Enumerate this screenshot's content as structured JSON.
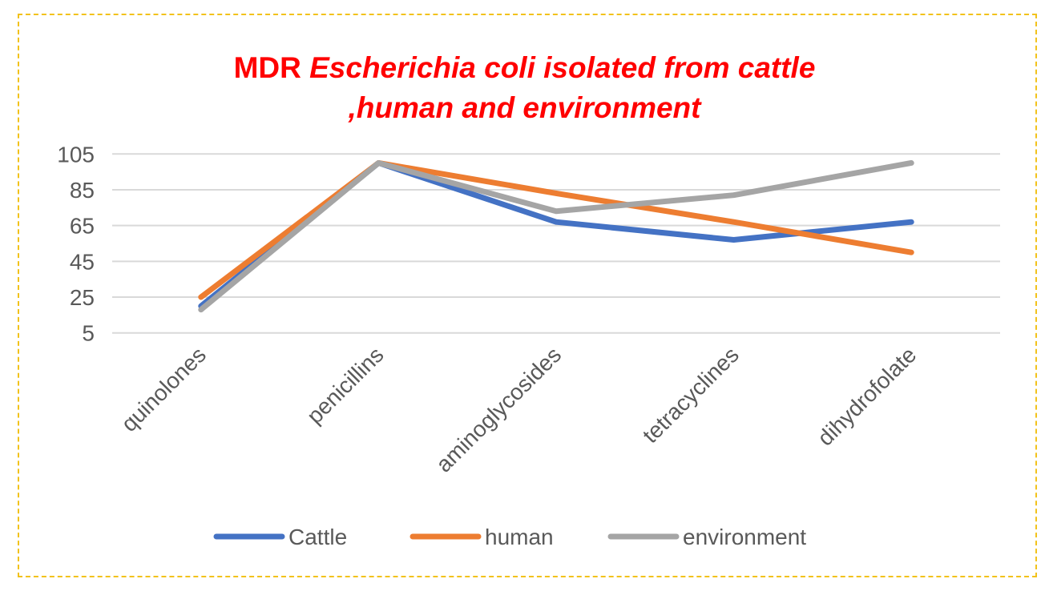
{
  "chart_data": {
    "type": "line",
    "title": {
      "line1_plain": "MDR ",
      "line1_italic": "Escherichia coli isolated from cattle",
      "line2_italic": ",human and  environment"
    },
    "xlabel": "",
    "ylabel": "",
    "categories": [
      "quinolones",
      "penicillins",
      "aminoglycosides",
      "tetracyclines",
      "dihydrofolate"
    ],
    "yticks": [
      5,
      25,
      45,
      65,
      85,
      105
    ],
    "ylim": [
      5,
      105
    ],
    "grid": true,
    "legend_position": "bottom",
    "series": [
      {
        "name": "Cattle",
        "color": "#4472c4",
        "values": [
          20,
          100,
          67,
          57,
          67
        ]
      },
      {
        "name": "human",
        "color": "#ed7d31",
        "values": [
          25,
          100,
          83,
          67,
          50
        ]
      },
      {
        "name": "environment",
        "color": "#a5a5a5",
        "values": [
          18,
          100,
          73,
          82,
          100
        ]
      }
    ]
  }
}
